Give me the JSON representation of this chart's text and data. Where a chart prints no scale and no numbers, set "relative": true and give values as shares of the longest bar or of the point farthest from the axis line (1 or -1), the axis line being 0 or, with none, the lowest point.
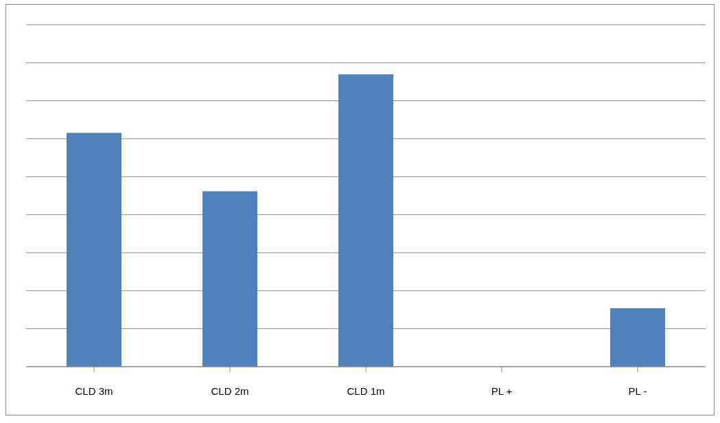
{
  "chart_data": {
    "type": "bar",
    "relative": true,
    "categories": [
      "CLD 3m",
      "CLD 2m",
      "CLD 1m",
      "PL +",
      "PL -"
    ],
    "values": [
      0.8,
      0.6,
      1,
      0,
      0.2
    ],
    "color": "#4f81bd",
    "grid": "y"
  }
}
